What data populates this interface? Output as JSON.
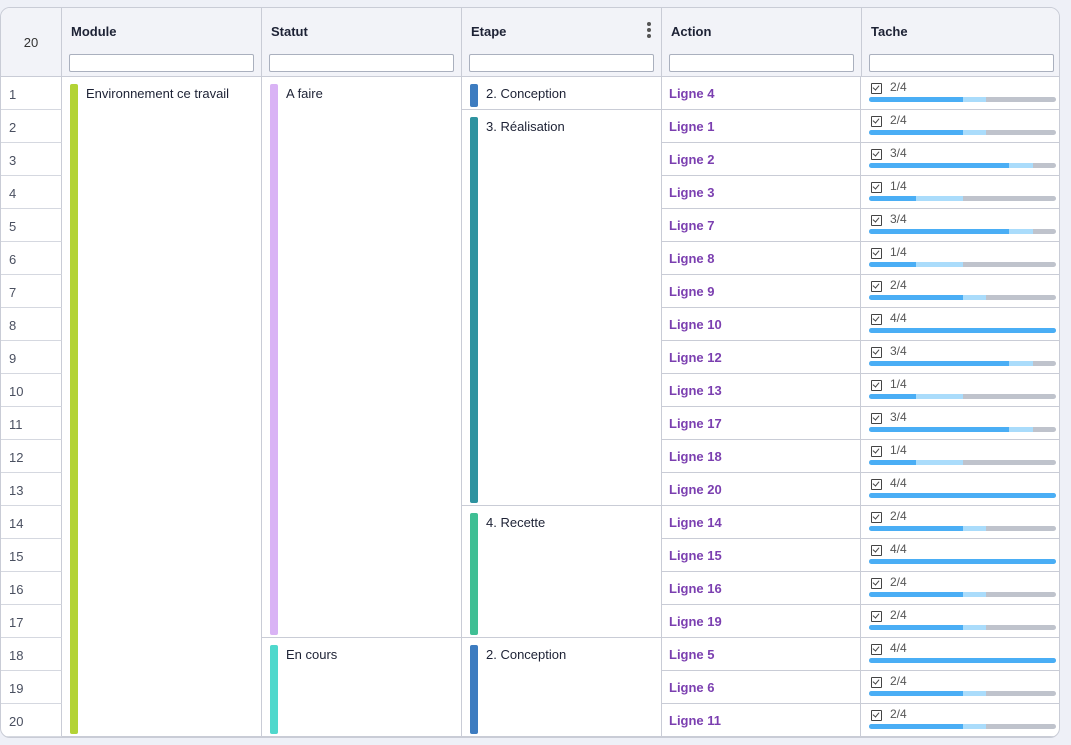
{
  "row_count": "20",
  "columns": {
    "module": "Module",
    "statut": "Statut",
    "etape": "Etape",
    "action": "Action",
    "tache": "Tache"
  },
  "row_numbers": [
    "1",
    "2",
    "3",
    "4",
    "5",
    "6",
    "7",
    "8",
    "9",
    "10",
    "11",
    "12",
    "13",
    "14",
    "15",
    "16",
    "17",
    "18",
    "19",
    "20"
  ],
  "colors": {
    "module_environnement": "#b3d335",
    "statut_a_faire": "#d9b3f5",
    "statut_en_cours": "#4fd8cc",
    "etape_conception": "#3d7cc0",
    "etape_realisation": "#2e93a0",
    "etape_recette": "#3fbf94",
    "action_link": "#7b3fb0",
    "progress_done": "#4aaef5"
  },
  "groups": {
    "module": [
      {
        "label": "Environnement ce travail",
        "start": 1,
        "end": 20,
        "color": "#b3d335"
      }
    ],
    "statut": [
      {
        "label": "A faire",
        "start": 1,
        "end": 17,
        "color": "#d9b3f5"
      },
      {
        "label": "En cours",
        "start": 18,
        "end": 20,
        "color": "#4fd8cc"
      }
    ],
    "etape": [
      {
        "label": "2. Conception",
        "start": 1,
        "end": 1,
        "color": "#3d7cc0"
      },
      {
        "label": "3. Réalisation",
        "start": 2,
        "end": 13,
        "color": "#2e93a0"
      },
      {
        "label": "4. Recette",
        "start": 14,
        "end": 17,
        "color": "#3fbf94"
      },
      {
        "label": "2. Conception",
        "start": 18,
        "end": 20,
        "color": "#3d7cc0"
      }
    ]
  },
  "rows": [
    {
      "action": "Ligne 4",
      "tasks": "2/4",
      "done": 2,
      "total": 4
    },
    {
      "action": "Ligne 1",
      "tasks": "2/4",
      "done": 2,
      "total": 4
    },
    {
      "action": "Ligne 2",
      "tasks": "3/4",
      "done": 3,
      "total": 4
    },
    {
      "action": "Ligne 3",
      "tasks": "1/4",
      "done": 1,
      "total": 4
    },
    {
      "action": "Ligne 7",
      "tasks": "3/4",
      "done": 3,
      "total": 4
    },
    {
      "action": "Ligne 8",
      "tasks": "1/4",
      "done": 1,
      "total": 4
    },
    {
      "action": "Ligne 9",
      "tasks": "2/4",
      "done": 2,
      "total": 4
    },
    {
      "action": "Ligne 10",
      "tasks": "4/4",
      "done": 4,
      "total": 4
    },
    {
      "action": "Ligne 12",
      "tasks": "3/4",
      "done": 3,
      "total": 4
    },
    {
      "action": "Ligne 13",
      "tasks": "1/4",
      "done": 1,
      "total": 4
    },
    {
      "action": "Ligne 17",
      "tasks": "3/4",
      "done": 3,
      "total": 4
    },
    {
      "action": "Ligne 18",
      "tasks": "1/4",
      "done": 1,
      "total": 4
    },
    {
      "action": "Ligne 20",
      "tasks": "4/4",
      "done": 4,
      "total": 4
    },
    {
      "action": "Ligne 14",
      "tasks": "2/4",
      "done": 2,
      "total": 4
    },
    {
      "action": "Ligne 15",
      "tasks": "4/4",
      "done": 4,
      "total": 4
    },
    {
      "action": "Ligne 16",
      "tasks": "2/4",
      "done": 2,
      "total": 4
    },
    {
      "action": "Ligne 19",
      "tasks": "2/4",
      "done": 2,
      "total": 4
    },
    {
      "action": "Ligne 5",
      "tasks": "4/4",
      "done": 4,
      "total": 4
    },
    {
      "action": "Ligne 6",
      "tasks": "2/4",
      "done": 2,
      "total": 4
    },
    {
      "action": "Ligne 11",
      "tasks": "2/4",
      "done": 2,
      "total": 4
    }
  ]
}
